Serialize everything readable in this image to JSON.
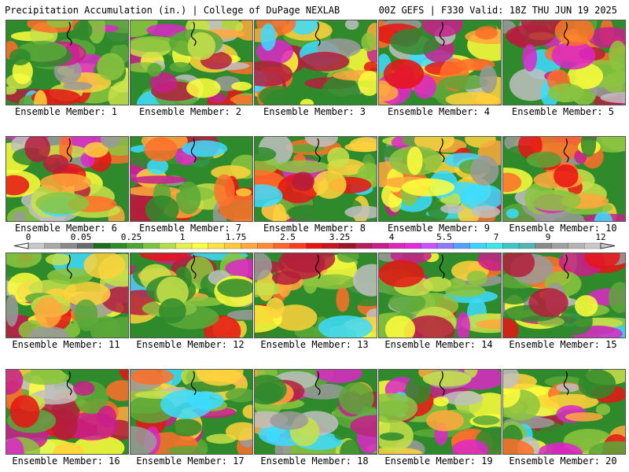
{
  "header": {
    "left": "Precipitation Accumulation (in.) | College of DuPage NEXLAB",
    "right": "00Z GEFS | F330 Valid: 18Z THU JUN 19 2025"
  },
  "members": [
    "Ensemble Member: 1",
    "Ensemble Member: 2",
    "Ensemble Member: 3",
    "Ensemble Member: 4",
    "Ensemble Member: 5",
    "Ensemble Member: 6",
    "Ensemble Member: 7",
    "Ensemble Member: 8",
    "Ensemble Member: 9",
    "Ensemble Member: 10",
    "Ensemble Member: 11",
    "Ensemble Member: 12",
    "Ensemble Member: 13",
    "Ensemble Member: 14",
    "Ensemble Member: 15",
    "Ensemble Member: 16",
    "Ensemble Member: 17",
    "Ensemble Member: 18",
    "Ensemble Member: 19",
    "Ensemble Member: 20"
  ],
  "legend": {
    "ticks": [
      "0",
      "0.05",
      "0.25",
      "1",
      "1.75",
      "2.5",
      "3.25",
      "4",
      "5.5",
      "7",
      "9",
      "12"
    ],
    "colors": [
      "#c8c8c8",
      "#a8a8a8",
      "#8a8a8a",
      "#6a6a6a",
      "#1a6e1a",
      "#2e8b2e",
      "#4fa336",
      "#7cc43f",
      "#b5dc4a",
      "#e8f04a",
      "#ffff3c",
      "#ffe23c",
      "#ffc83c",
      "#ffa83c",
      "#ff8a32",
      "#ff6428",
      "#ff3c1e",
      "#e61414",
      "#c8141e",
      "#a01428",
      "#b41e5a",
      "#c81e8c",
      "#dc28b4",
      "#e628dc",
      "#c850ff",
      "#8c78ff",
      "#50a0ff",
      "#3cd2ff",
      "#3ce6e6",
      "#3cc8c8",
      "#50b4b4",
      "#8a8a8a",
      "#a0a0a0",
      "#b4b4b4",
      "#c8c8c8"
    ]
  }
}
